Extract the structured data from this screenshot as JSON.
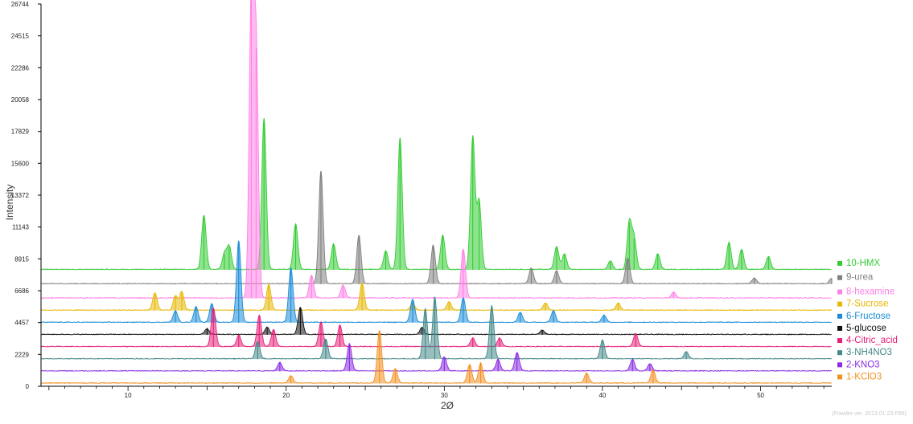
{
  "chart_data": {
    "type": "line",
    "xlabel": "2Ø",
    "ylabel": "Intensity",
    "xlim": [
      4.5,
      54.5
    ],
    "ylim": [
      0,
      26744
    ],
    "x_ticks": [
      10,
      20,
      30,
      40,
      50
    ],
    "y_ticks": [
      0,
      2229,
      4457,
      6686,
      8915,
      11143,
      13372,
      15600,
      17829,
      20058,
      22286,
      24515,
      26744
    ],
    "grid": false,
    "legend_position": "right",
    "series": [
      {
        "name": "10-HMX",
        "color": "#33cc33",
        "baseline": 8150,
        "peaks": [
          [
            14.8,
            3800
          ],
          [
            16.1,
            1100
          ],
          [
            16.4,
            1600
          ],
          [
            18.6,
            10600
          ],
          [
            20.6,
            3200
          ],
          [
            23.0,
            1800
          ],
          [
            26.3,
            1300
          ],
          [
            27.2,
            9200
          ],
          [
            29.9,
            2400
          ],
          [
            31.8,
            9300
          ],
          [
            32.2,
            4800
          ],
          [
            37.1,
            1600
          ],
          [
            37.6,
            1100
          ],
          [
            40.5,
            600
          ],
          [
            41.7,
            3300
          ],
          [
            42.0,
            2200
          ],
          [
            43.5,
            1100
          ],
          [
            48.0,
            1900
          ],
          [
            48.8,
            1400
          ],
          [
            50.5,
            900
          ]
        ]
      },
      {
        "name": "9-urea",
        "color": "#808080",
        "baseline": 7150,
        "peaks": [
          [
            22.2,
            7900
          ],
          [
            24.6,
            3400
          ],
          [
            29.3,
            2700
          ],
          [
            35.5,
            1100
          ],
          [
            37.1,
            900
          ],
          [
            41.6,
            1800
          ],
          [
            49.6,
            400
          ],
          [
            54.5,
            400
          ]
        ]
      },
      {
        "name": "8-hexamine",
        "color": "#ff80e6",
        "baseline": 6150,
        "peaks": [
          [
            17.8,
            21000
          ],
          [
            18.1,
            17500
          ],
          [
            21.6,
            1600
          ],
          [
            23.6,
            900
          ],
          [
            31.2,
            3400
          ],
          [
            44.5,
            400
          ]
        ]
      },
      {
        "name": "7-Sucrose",
        "color": "#e6b800",
        "baseline": 5300,
        "peaks": [
          [
            11.7,
            1200
          ],
          [
            13.0,
            1000
          ],
          [
            13.4,
            1300
          ],
          [
            18.9,
            1800
          ],
          [
            24.8,
            1900
          ],
          [
            28.0,
            500
          ],
          [
            30.3,
            600
          ],
          [
            36.4,
            500
          ],
          [
            41.0,
            500
          ]
        ]
      },
      {
        "name": "6-Fructose",
        "color": "#1a8cd8",
        "baseline": 4450,
        "peaks": [
          [
            13.0,
            800
          ],
          [
            14.3,
            1100
          ],
          [
            15.3,
            1300
          ],
          [
            17.0,
            5700
          ],
          [
            20.3,
            3800
          ],
          [
            28.0,
            1600
          ],
          [
            31.2,
            1700
          ],
          [
            34.8,
            700
          ],
          [
            36.9,
            800
          ],
          [
            40.1,
            500
          ]
        ]
      },
      {
        "name": "5-glucose",
        "color": "#111111",
        "baseline": 3600,
        "peaks": [
          [
            15.0,
            400
          ],
          [
            18.8,
            500
          ],
          [
            20.9,
            1900
          ],
          [
            28.6,
            500
          ],
          [
            36.2,
            300
          ]
        ]
      },
      {
        "name": "4-Citric_acid",
        "color": "#e6217a",
        "baseline": 2750,
        "peaks": [
          [
            15.4,
            2700
          ],
          [
            17.0,
            800
          ],
          [
            18.3,
            2200
          ],
          [
            19.2,
            1200
          ],
          [
            22.2,
            1700
          ],
          [
            23.4,
            1500
          ],
          [
            31.8,
            600
          ],
          [
            33.5,
            600
          ],
          [
            42.1,
            900
          ]
        ]
      },
      {
        "name": "3-NH4NO3",
        "color": "#448888",
        "baseline": 1900,
        "peaks": [
          [
            18.2,
            1200
          ],
          [
            22.5,
            1400
          ],
          [
            28.8,
            3500
          ],
          [
            29.4,
            4300
          ],
          [
            33.0,
            3700
          ],
          [
            40.0,
            1300
          ],
          [
            45.3,
            500
          ]
        ]
      },
      {
        "name": "2-KNO3",
        "color": "#8a2be2",
        "baseline": 1050,
        "peaks": [
          [
            19.6,
            600
          ],
          [
            24.0,
            1900
          ],
          [
            30.0,
            1000
          ],
          [
            33.4,
            800
          ],
          [
            34.6,
            1300
          ],
          [
            41.9,
            800
          ],
          [
            43.0,
            500
          ]
        ]
      },
      {
        "name": "1-KClO3",
        "color": "#f39020",
        "baseline": 200,
        "peaks": [
          [
            20.3,
            500
          ],
          [
            25.9,
            3700
          ],
          [
            26.9,
            1000
          ],
          [
            31.6,
            1300
          ],
          [
            32.3,
            1400
          ],
          [
            39.0,
            700
          ],
          [
            43.2,
            900
          ]
        ]
      }
    ]
  },
  "footer_note": "(Powder ver. 2013.01.23 P86)"
}
